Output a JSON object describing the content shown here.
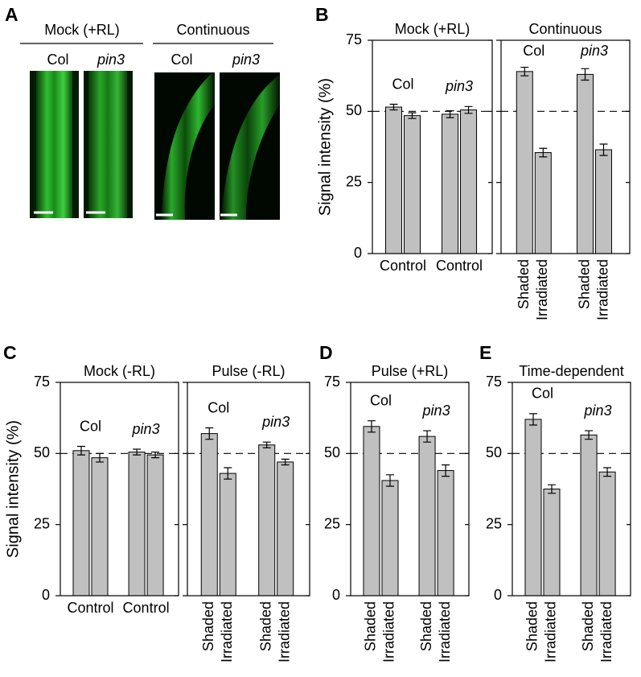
{
  "panel_a": {
    "letter": "A",
    "groups": [
      {
        "label": "Mock (+RL)",
        "columns": [
          "Col",
          "pin3"
        ]
      },
      {
        "label": "Continuous",
        "columns": [
          "Col",
          "pin3"
        ]
      }
    ]
  },
  "chart_data": [
    {
      "type": "bar",
      "letter": "B",
      "title": "Mock (+RL)",
      "ylabel": "Signal intensity (%)",
      "ylim": [
        0,
        75
      ],
      "yticks": [
        0,
        25,
        50,
        75
      ],
      "tick_labels": true,
      "reference_line": 50,
      "groups": [
        {
          "name": "Col",
          "xlabel": "Control",
          "values": [
            51.5,
            48.5
          ],
          "errors": [
            1.0,
            1.0
          ]
        },
        {
          "name": "pin3",
          "xlabel": "Control",
          "values": [
            49,
            50.5
          ],
          "errors": [
            1.2,
            1.2
          ]
        }
      ]
    },
    {
      "type": "bar",
      "title": "Continuous",
      "ylim": [
        0,
        75
      ],
      "yticks": [
        0,
        25,
        50,
        75
      ],
      "tick_labels": false,
      "reference_line": 50,
      "categories": [
        "Shaded",
        "Irradiated"
      ],
      "groups": [
        {
          "name": "Col",
          "values": [
            64,
            35.5
          ],
          "errors": [
            1.5,
            1.5
          ]
        },
        {
          "name": "pin3",
          "values": [
            63,
            36.5
          ],
          "errors": [
            2,
            2
          ]
        }
      ]
    },
    {
      "type": "bar",
      "letter": "C",
      "title": "Mock (-RL)",
      "ylabel": "Signal intensity (%)",
      "ylim": [
        0,
        75
      ],
      "yticks": [
        0,
        25,
        50,
        75
      ],
      "tick_labels": true,
      "reference_line": 50,
      "groups": [
        {
          "name": "Col",
          "xlabel": "Control",
          "values": [
            51,
            48.5
          ],
          "errors": [
            1.5,
            1.5
          ]
        },
        {
          "name": "pin3",
          "xlabel": "Control",
          "values": [
            50.5,
            49.5
          ],
          "errors": [
            1.0,
            1.0
          ]
        }
      ]
    },
    {
      "type": "bar",
      "title": "Pulse (-RL)",
      "ylim": [
        0,
        75
      ],
      "yticks": [
        0,
        25,
        50,
        75
      ],
      "tick_labels": false,
      "reference_line": 50,
      "categories": [
        "Shaded",
        "Irradiated"
      ],
      "groups": [
        {
          "name": "Col",
          "values": [
            57,
            43
          ],
          "errors": [
            2,
            2
          ]
        },
        {
          "name": "pin3",
          "values": [
            53,
            47
          ],
          "errors": [
            1,
            1
          ]
        }
      ]
    },
    {
      "type": "bar",
      "letter": "D",
      "title": "Pulse (+RL)",
      "ylim": [
        0,
        75
      ],
      "yticks": [
        0,
        25,
        50,
        75
      ],
      "tick_labels": true,
      "reference_line": 50,
      "categories": [
        "Shaded",
        "Irradiated"
      ],
      "groups": [
        {
          "name": "Col",
          "values": [
            59.5,
            40.5
          ],
          "errors": [
            2,
            2
          ]
        },
        {
          "name": "pin3",
          "values": [
            56,
            44
          ],
          "errors": [
            2,
            2
          ]
        }
      ]
    },
    {
      "type": "bar",
      "letter": "E",
      "title": "Time-dependent",
      "ylim": [
        0,
        75
      ],
      "yticks": [
        0,
        25,
        50,
        75
      ],
      "tick_labels": true,
      "reference_line": 50,
      "categories": [
        "Shaded",
        "Irradiated"
      ],
      "groups": [
        {
          "name": "Col",
          "values": [
            62,
            37.5
          ],
          "errors": [
            2,
            1.5
          ]
        },
        {
          "name": "pin3",
          "values": [
            56.5,
            43.5
          ],
          "errors": [
            1.5,
            1.5
          ]
        }
      ]
    }
  ]
}
